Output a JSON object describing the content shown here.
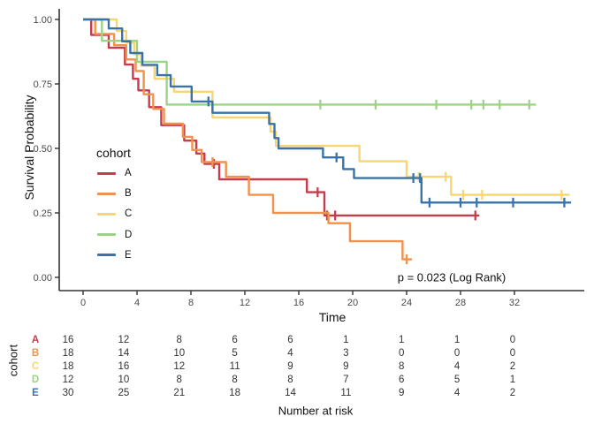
{
  "figure": {
    "legend": {
      "title": "cohort",
      "items": [
        {
          "label": "A",
          "color": "#c53d4c"
        },
        {
          "label": "B",
          "color": "#f0914c"
        },
        {
          "label": "C",
          "color": "#f8d573"
        },
        {
          "label": "D",
          "color": "#9cd487"
        },
        {
          "label": "E",
          "color": "#3973a9"
        }
      ]
    },
    "annotation": "p = 0.023 (Log Rank)"
  },
  "chart_data": {
    "type": "line",
    "subtype": "kaplan-meier-step",
    "title": "",
    "xlabel": "Time",
    "ylabel": "Survival Probability",
    "xlim": [
      0,
      36.5
    ],
    "ylim": [
      0,
      1.0
    ],
    "x_ticks": [
      0,
      4,
      8,
      12,
      16,
      20,
      24,
      28,
      32
    ],
    "y_ticks": [
      "0.00",
      "0.25",
      "0.50",
      "0.75",
      "1.00"
    ],
    "grid": false,
    "legend_position": "inside-left",
    "p_value": "p = 0.023 (Log Rank)",
    "series": [
      {
        "name": "A",
        "color": "#c53d4c",
        "steps": [
          [
            0,
            1.0
          ],
          [
            0.6,
            0.94
          ],
          [
            1.9,
            0.89
          ],
          [
            3.1,
            0.825
          ],
          [
            3.7,
            0.77
          ],
          [
            4.1,
            0.725
          ],
          [
            4.9,
            0.66
          ],
          [
            5.8,
            0.59
          ],
          [
            7.5,
            0.53
          ],
          [
            8.4,
            0.48
          ],
          [
            9.0,
            0.44
          ],
          [
            10.1,
            0.38
          ],
          [
            16.6,
            0.33
          ],
          [
            17.9,
            0.24
          ],
          [
            29.4,
            0.24
          ]
        ],
        "censor_marks": [
          [
            9.7,
            0.44
          ],
          [
            17.4,
            0.33
          ],
          [
            18.1,
            0.24
          ],
          [
            18.7,
            0.24
          ],
          [
            29.1,
            0.24
          ]
        ]
      },
      {
        "name": "B",
        "color": "#f0914c",
        "steps": [
          [
            0,
            1.0
          ],
          [
            0.9,
            0.944
          ],
          [
            2.3,
            0.9
          ],
          [
            3.2,
            0.845
          ],
          [
            3.9,
            0.8
          ],
          [
            4.5,
            0.71
          ],
          [
            5.2,
            0.653
          ],
          [
            6.0,
            0.596
          ],
          [
            7.4,
            0.545
          ],
          [
            8.1,
            0.494
          ],
          [
            8.8,
            0.447
          ],
          [
            10.6,
            0.39
          ],
          [
            12.3,
            0.32
          ],
          [
            14.1,
            0.25
          ],
          [
            18.2,
            0.21
          ],
          [
            19.8,
            0.14
          ],
          [
            23.7,
            0.07
          ],
          [
            24.4,
            0.07
          ]
        ],
        "censor_marks": [
          [
            9.6,
            0.447
          ],
          [
            24.0,
            0.07
          ]
        ]
      },
      {
        "name": "C",
        "color": "#f8d573",
        "steps": [
          [
            0,
            1.0
          ],
          [
            2.5,
            0.955
          ],
          [
            3.2,
            0.91
          ],
          [
            3.8,
            0.865
          ],
          [
            4.3,
            0.82
          ],
          [
            5.3,
            0.77
          ],
          [
            6.75,
            0.72
          ],
          [
            9.6,
            0.62
          ],
          [
            13.9,
            0.565
          ],
          [
            14.3,
            0.51
          ],
          [
            20.5,
            0.45
          ],
          [
            24.0,
            0.39
          ],
          [
            27.3,
            0.32
          ],
          [
            36.1,
            0.32
          ]
        ],
        "censor_marks": [
          [
            24.9,
            0.39
          ],
          [
            26.9,
            0.39
          ],
          [
            28.2,
            0.32
          ],
          [
            29.6,
            0.32
          ],
          [
            35.5,
            0.32
          ]
        ]
      },
      {
        "name": "D",
        "color": "#9cd487",
        "steps": [
          [
            0,
            1.0
          ],
          [
            1.4,
            0.917
          ],
          [
            4.0,
            0.836
          ],
          [
            6.2,
            0.67
          ],
          [
            33.6,
            0.67
          ]
        ],
        "censor_marks": [
          [
            17.6,
            0.67
          ],
          [
            21.7,
            0.67
          ],
          [
            26.2,
            0.67
          ],
          [
            28.8,
            0.67
          ],
          [
            29.7,
            0.67
          ],
          [
            30.9,
            0.67
          ],
          [
            33.1,
            0.67
          ]
        ]
      },
      {
        "name": "E",
        "color": "#3973a9",
        "steps": [
          [
            0,
            1.0
          ],
          [
            1.9,
            0.965
          ],
          [
            2.9,
            0.915
          ],
          [
            3.5,
            0.87
          ],
          [
            4.4,
            0.824
          ],
          [
            5.5,
            0.784
          ],
          [
            6.5,
            0.74
          ],
          [
            8.05,
            0.682
          ],
          [
            9.6,
            0.638
          ],
          [
            13.8,
            0.595
          ],
          [
            14.2,
            0.54
          ],
          [
            14.5,
            0.5
          ],
          [
            17.8,
            0.465
          ],
          [
            19.3,
            0.42
          ],
          [
            20.1,
            0.385
          ],
          [
            25.1,
            0.29
          ],
          [
            36.2,
            0.29
          ]
        ],
        "censor_marks": [
          [
            9.3,
            0.682
          ],
          [
            18.8,
            0.465
          ],
          [
            24.5,
            0.385
          ],
          [
            25.0,
            0.385
          ],
          [
            25.7,
            0.29
          ],
          [
            28.0,
            0.29
          ],
          [
            29.2,
            0.29
          ],
          [
            31.9,
            0.29
          ],
          [
            35.7,
            0.29
          ]
        ]
      }
    ]
  },
  "risk_table": {
    "group_axis_label": "cohort",
    "title": "Number at risk",
    "time_points": [
      0,
      4,
      8,
      12,
      16,
      20,
      24,
      28,
      32
    ],
    "rows": [
      {
        "cohort": "A",
        "color": "#c53d4c",
        "counts": [
          16,
          12,
          8,
          6,
          6,
          1,
          1,
          1,
          0
        ]
      },
      {
        "cohort": "B",
        "color": "#f0914c",
        "counts": [
          18,
          14,
          10,
          5,
          4,
          3,
          0,
          0,
          0
        ]
      },
      {
        "cohort": "C",
        "color": "#f8d573",
        "counts": [
          18,
          16,
          12,
          11,
          9,
          9,
          8,
          4,
          2
        ]
      },
      {
        "cohort": "D",
        "color": "#9cd487",
        "counts": [
          12,
          10,
          8,
          8,
          8,
          7,
          6,
          5,
          1
        ]
      },
      {
        "cohort": "E",
        "color": "#3973a9",
        "counts": [
          30,
          25,
          21,
          18,
          14,
          11,
          9,
          4,
          2
        ]
      }
    ]
  }
}
